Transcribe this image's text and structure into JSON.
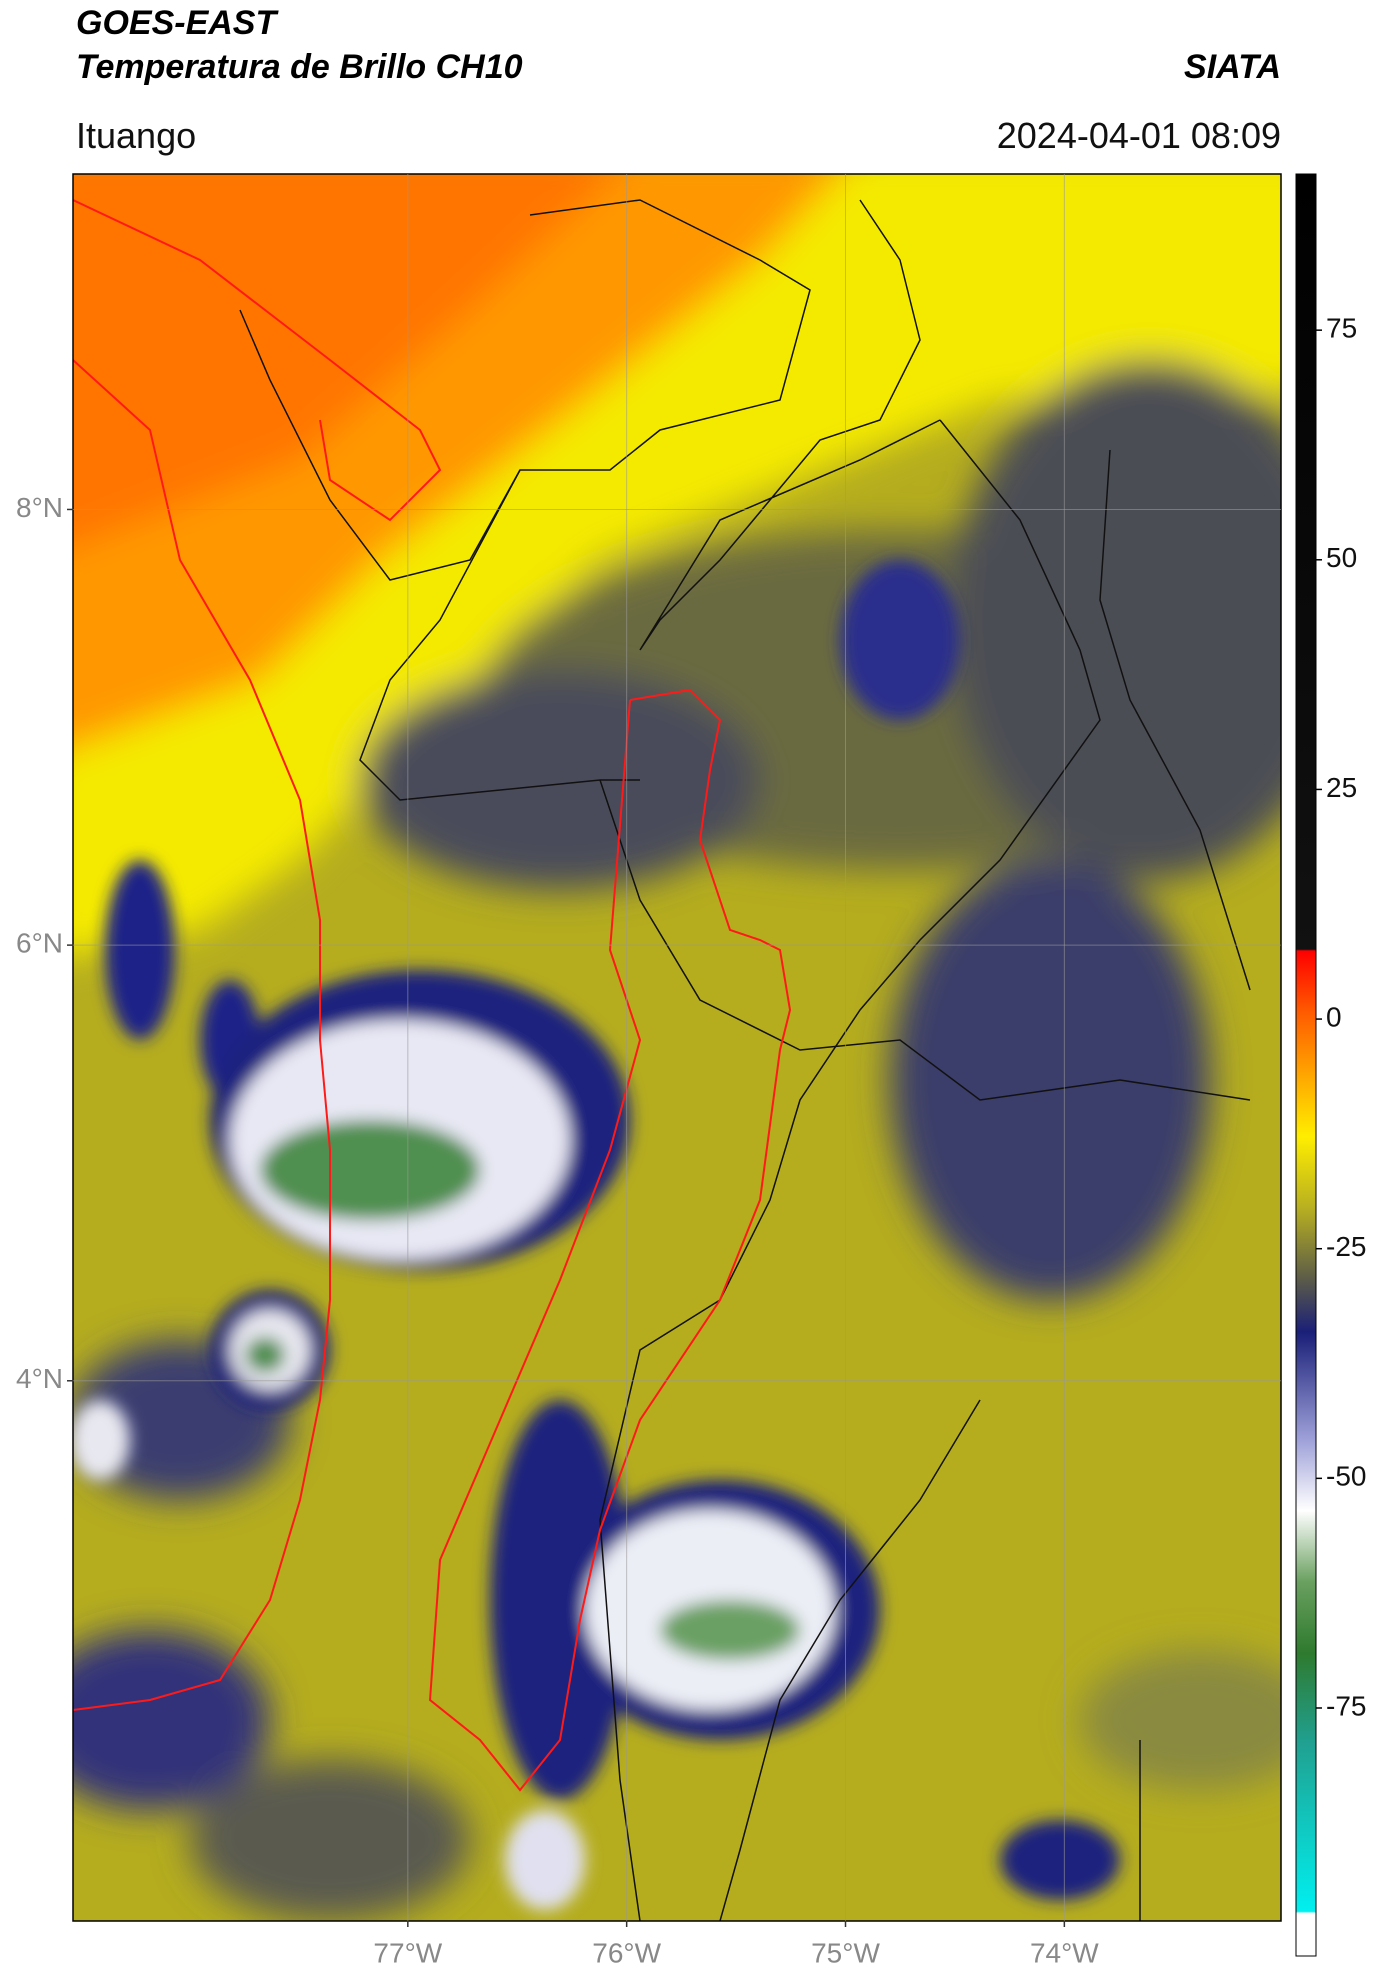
{
  "header": {
    "title": "GOES-EAST",
    "subtitle": "Temperatura de Brillo CH10",
    "organization": "SIATA",
    "location": "Ituango",
    "datetime": "2024-04-01 08:09"
  },
  "map": {
    "lat_range": [
      1.52,
      9.54
    ],
    "lon_range": [
      -78.53,
      -73.01
    ],
    "lat_ticks": [
      {
        "value": 8,
        "label": "8°N"
      },
      {
        "value": 6,
        "label": "6°N"
      },
      {
        "value": 4,
        "label": "4°N"
      }
    ],
    "lon_ticks": [
      {
        "value": -77,
        "label": "77°W"
      },
      {
        "value": -76,
        "label": "76°W"
      },
      {
        "value": -75,
        "label": "75°W"
      },
      {
        "value": -74,
        "label": "74°W"
      }
    ]
  },
  "colorbar": {
    "range": [
      -102,
      92
    ],
    "ticks": [
      75,
      50,
      25,
      0,
      -25,
      -50,
      -75
    ]
  }
}
